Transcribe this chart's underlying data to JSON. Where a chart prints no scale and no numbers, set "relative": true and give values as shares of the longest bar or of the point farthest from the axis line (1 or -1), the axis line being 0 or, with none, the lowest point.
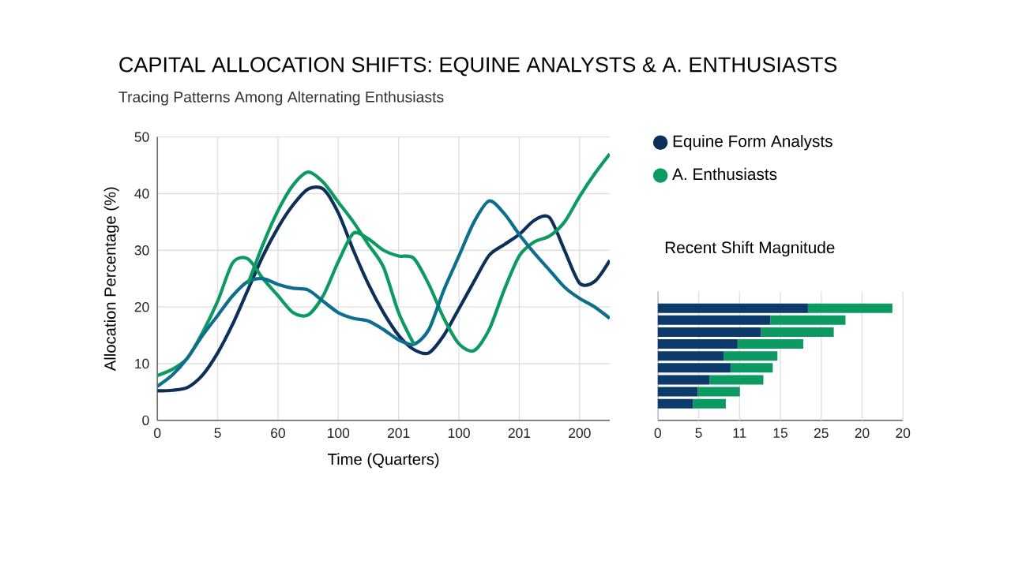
{
  "chart_data": [
    {
      "type": "line",
      "title": "CAPITAL ALLOCATION SHIFTS: EQUINE ANALYSTS & A. ENTHUSIASTS",
      "subtitle": "Tracing Patterns Among Alternating Enthusiasts",
      "xlabel": "Time (Quarters)",
      "ylabel": "Allocation Percentage (%)",
      "categories": [
        "0",
        null,
        null,
        null,
        "5",
        null,
        null,
        null,
        "60",
        null,
        null,
        null,
        "100",
        null,
        null,
        null,
        "201",
        null,
        null,
        null,
        "100",
        null,
        null,
        null,
        "201",
        null,
        null,
        null,
        "200",
        null,
        null
      ],
      "ylim": [
        0,
        50
      ],
      "yticks": [
        0,
        10,
        20,
        30,
        40,
        50
      ],
      "grid": true,
      "legend": "right",
      "series": [
        {
          "name": "Equine Form Analysts",
          "color": "#0d2f5a",
          "values": [
            5.2,
            5.3,
            5.8,
            8,
            11.9,
            17,
            23,
            29,
            34,
            38,
            40.8,
            40.8,
            36.6,
            30,
            24,
            19,
            15,
            12.5,
            11.9,
            15,
            19.7,
            24.5,
            29.1,
            31,
            32.8,
            35.3,
            35.8,
            30,
            24.2,
            24.5,
            28.2
          ]
        },
        {
          "name": "A. Enthusiasts",
          "color": "#0c9a62",
          "values": [
            7.9,
            9,
            11,
            15.5,
            21,
            27.8,
            28.5,
            25,
            22,
            19,
            18.6,
            22,
            28,
            33,
            32,
            30,
            29,
            28.6,
            24,
            18,
            13.5,
            12.3,
            16,
            23,
            29,
            31.5,
            32.5,
            35,
            39.5,
            43.5,
            47
          ]
        },
        {
          "color": "#0e6e8e",
          "values": [
            6,
            8,
            11,
            15,
            18.5,
            22,
            24.5,
            25,
            24,
            23.3,
            23,
            21,
            19,
            18,
            17.5,
            16,
            14.2,
            13.4,
            16,
            23,
            29,
            35,
            38.7,
            36.5,
            32.8,
            29.5,
            26.5,
            23.5,
            21.5,
            20,
            18
          ]
        },
        {
          "color": "#0c9a62",
          "values": [
            null,
            null,
            null,
            null,
            null,
            null,
            24,
            31,
            37,
            41.5,
            43.8,
            42,
            38.5,
            35,
            31,
            27,
            19,
            13.5,
            null,
            null,
            null,
            null,
            null,
            null,
            null,
            null,
            null,
            null,
            null,
            null,
            null
          ]
        }
      ]
    },
    {
      "type": "bar",
      "title": "Recent Shift Magnitude",
      "orientation": "horizontal",
      "stacked": true,
      "relative": true,
      "categories": [
        null,
        null,
        null,
        null,
        null,
        null,
        null,
        null,
        null
      ],
      "grid": "x",
      "annotations": [
        "0",
        "5",
        "11",
        "15",
        "25",
        "20",
        "20"
      ],
      "series": [
        {
          "color": "#0b3a6b",
          "values": [
            0.64,
            0.48,
            0.44,
            0.34,
            0.28,
            0.31,
            0.22,
            0.17,
            0.15
          ]
        },
        {
          "color": "#0c9a62",
          "values": [
            0.36,
            0.32,
            0.31,
            0.28,
            0.23,
            0.18,
            0.23,
            0.18,
            0.14
          ]
        }
      ]
    }
  ]
}
